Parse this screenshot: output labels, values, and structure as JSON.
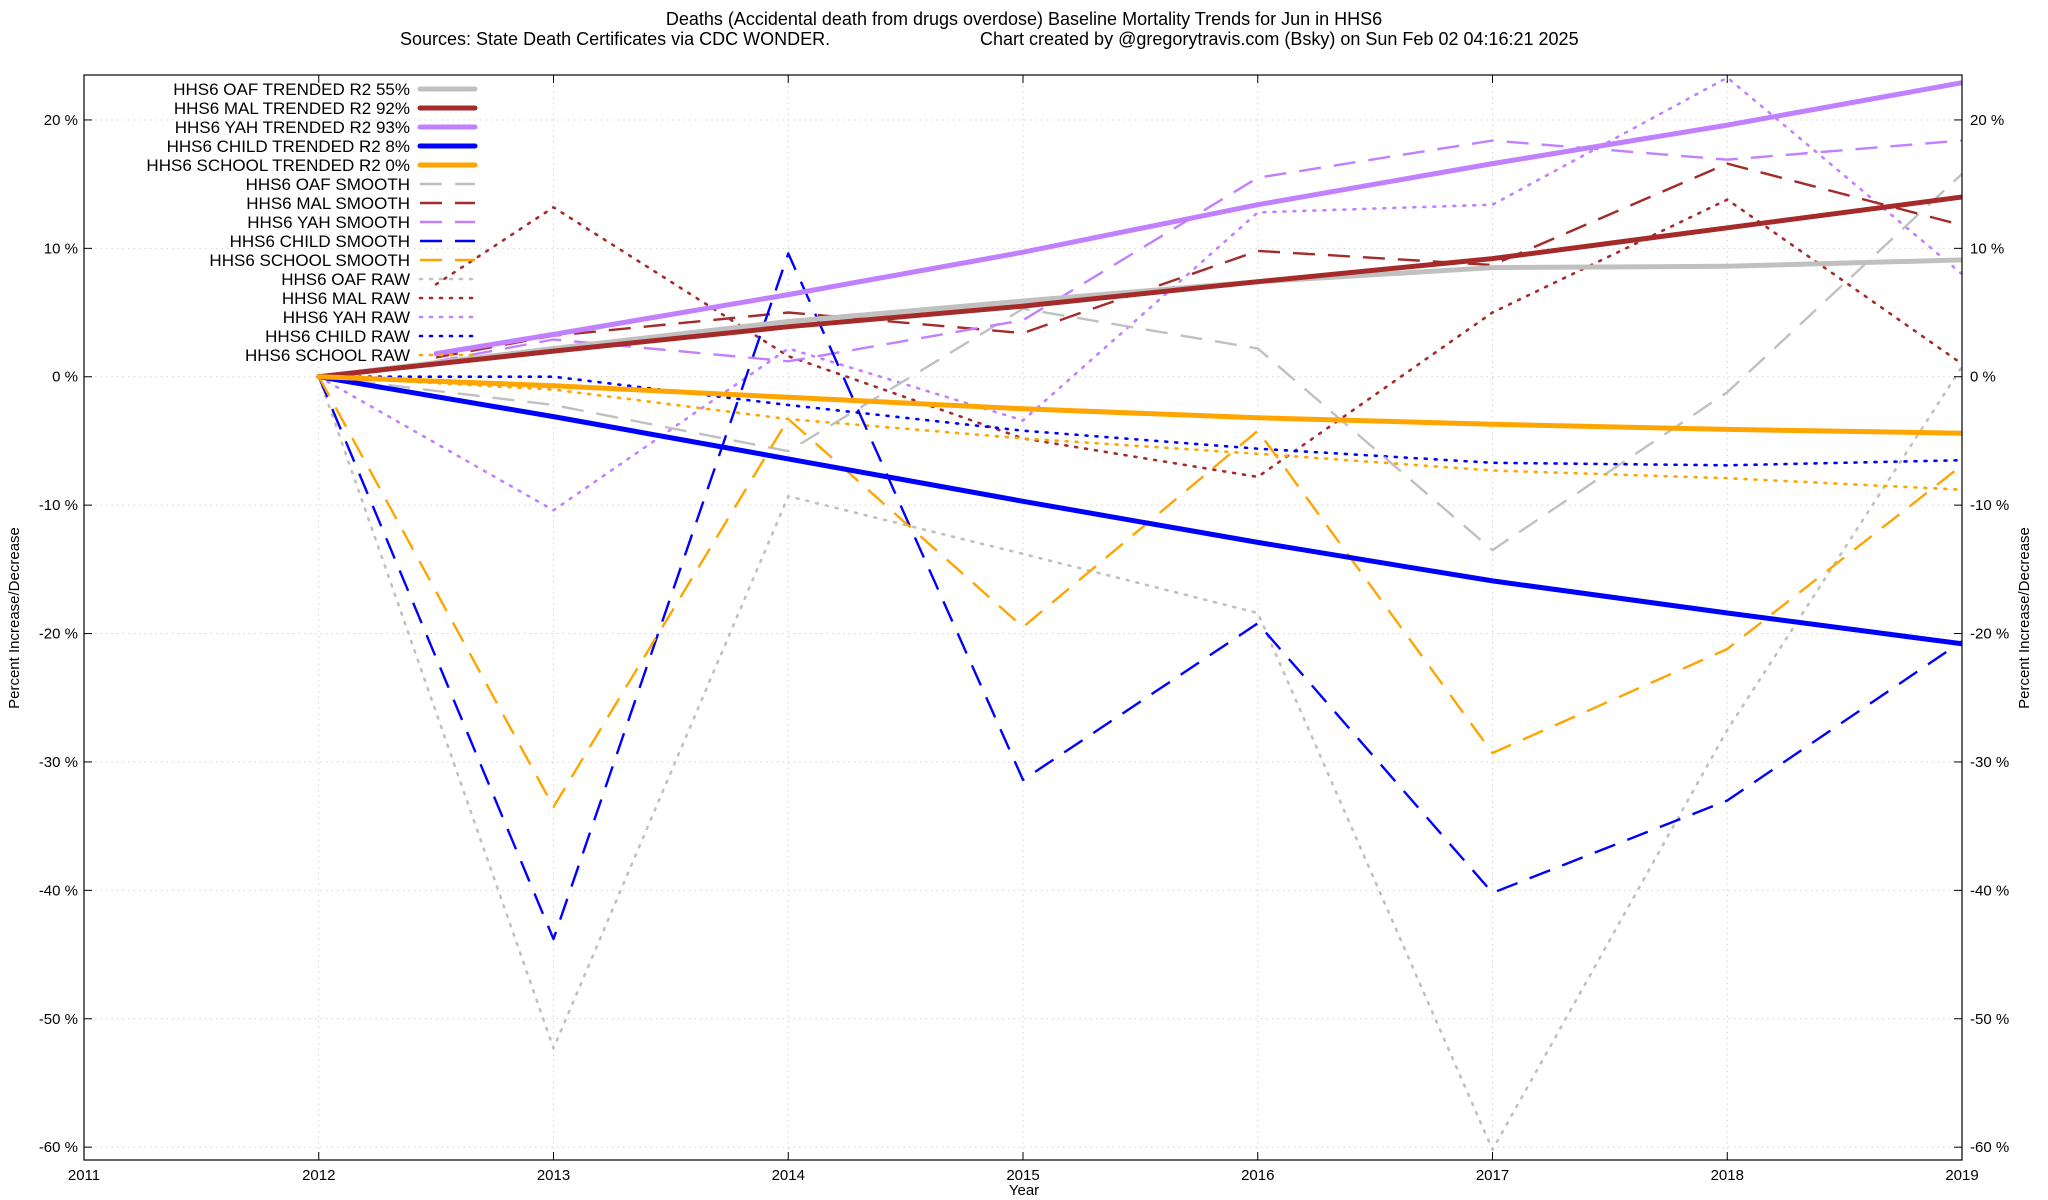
{
  "chart_data": {
    "type": "line",
    "title": "Deaths (Accidental death from drugs overdose)  Baseline Mortality Trends for Jun in HHS6",
    "subtitle_left": "Sources: State Death Certificates via CDC WONDER.",
    "subtitle_right": "Chart created by @gregorytravis.com (Bsky) on Sun Feb 02 04:16:21 2025",
    "xlabel": "Year",
    "ylabel_left": "Percent Increase/Decrease",
    "ylabel_right": "Percent Increase/Decrease",
    "xlim": [
      2011,
      2019
    ],
    "ylim": [
      -61,
      23.5
    ],
    "x_ticks": [
      2011,
      2012,
      2013,
      2014,
      2015,
      2016,
      2017,
      2018,
      2019
    ],
    "x_tick_labels": [
      "2011",
      "2012",
      "2013",
      "2014",
      "2015",
      "2016",
      "2017",
      "2018",
      "2019"
    ],
    "y_ticks": [
      20,
      10,
      0,
      -10,
      -20,
      -30,
      -40,
      -50,
      -60
    ],
    "y_tick_labels": [
      "20 %",
      "10 %",
      "0 %",
      "-10 %",
      "-20 %",
      "-30 %",
      "-40 %",
      "-50 %",
      "-60 %"
    ],
    "grid": true,
    "legend_position": "top-left",
    "series": [
      {
        "name": "HHS6 OAF TRENDED R2  55%",
        "style": "trend",
        "color": "#c0c0c0",
        "points": [
          [
            2012,
            0
          ],
          [
            2013,
            2.2
          ],
          [
            2014,
            4.3
          ],
          [
            2015,
            5.9
          ],
          [
            2016,
            7.4
          ],
          [
            2017,
            8.5
          ],
          [
            2018,
            8.6
          ],
          [
            2019,
            9.1
          ]
        ]
      },
      {
        "name": "HHS6 MAL TRENDED R2  92%",
        "style": "trend",
        "color": "#a52a2a",
        "points": [
          [
            2012,
            0
          ],
          [
            2013,
            2
          ],
          [
            2014,
            3.9
          ],
          [
            2015,
            5.5
          ],
          [
            2016,
            7.4
          ],
          [
            2017,
            9.2
          ],
          [
            2018,
            11.6
          ],
          [
            2019,
            14
          ]
        ]
      },
      {
        "name": "HHS6 YAH TRENDED R2  93%",
        "style": "trend",
        "color": "#c080ff",
        "points": [
          [
            2012.5,
            1.8
          ],
          [
            2013,
            3.3
          ],
          [
            2014,
            6.4
          ],
          [
            2015,
            9.7
          ],
          [
            2016,
            13.4
          ],
          [
            2017,
            16.6
          ],
          [
            2018,
            19.6
          ],
          [
            2019,
            22.9
          ]
        ]
      },
      {
        "name": "HHS6 CHILD TRENDED R2   8%",
        "style": "trend",
        "color": "#0000ff",
        "points": [
          [
            2012,
            0
          ],
          [
            2013,
            -3.1
          ],
          [
            2014,
            -6.4
          ],
          [
            2015,
            -9.7
          ],
          [
            2016,
            -12.9
          ],
          [
            2017,
            -15.9
          ],
          [
            2018,
            -18.4
          ],
          [
            2019,
            -20.8
          ]
        ]
      },
      {
        "name": "HHS6 SCHOOL TRENDED R2   0%",
        "style": "trend",
        "color": "#ffa500",
        "points": [
          [
            2012,
            0
          ],
          [
            2013,
            -0.7
          ],
          [
            2014,
            -1.6
          ],
          [
            2015,
            -2.5
          ],
          [
            2016,
            -3.2
          ],
          [
            2017,
            -3.7
          ],
          [
            2018,
            -4.1
          ],
          [
            2019,
            -4.4
          ]
        ]
      },
      {
        "name": "HHS6 OAF SMOOTH",
        "style": "smooth",
        "color": "#c0c0c0",
        "points": [
          [
            2012,
            0
          ],
          [
            2013,
            -2.2
          ],
          [
            2014,
            -5.8
          ],
          [
            2015,
            5.3
          ],
          [
            2016,
            2.2
          ],
          [
            2017,
            -13.5
          ],
          [
            2018,
            -1.2
          ],
          [
            2019,
            15.8
          ]
        ]
      },
      {
        "name": "HHS6 MAL SMOOTH",
        "style": "smooth",
        "color": "#a52a2a",
        "points": [
          [
            2012.5,
            1.5
          ],
          [
            2013,
            3.2
          ],
          [
            2014,
            5
          ],
          [
            2015,
            3.4
          ],
          [
            2016,
            9.8
          ],
          [
            2017,
            8.7
          ],
          [
            2018,
            16.6
          ],
          [
            2019,
            11.8
          ]
        ]
      },
      {
        "name": "HHS6 YAH SMOOTH",
        "style": "smooth",
        "color": "#c080ff",
        "points": [
          [
            2012.5,
            1.2
          ],
          [
            2013,
            2.9
          ],
          [
            2014,
            1.2
          ],
          [
            2015,
            4.4
          ],
          [
            2016,
            15.5
          ],
          [
            2017,
            18.4
          ],
          [
            2018,
            16.9
          ],
          [
            2019,
            18.4
          ]
        ]
      },
      {
        "name": "HHS6 CHILD SMOOTH",
        "style": "smooth",
        "color": "#0000ff",
        "points": [
          [
            2012,
            0
          ],
          [
            2013,
            -43.8
          ],
          [
            2014,
            9.6
          ],
          [
            2015,
            -31.4
          ],
          [
            2016,
            -19.2
          ],
          [
            2017,
            -40.2
          ],
          [
            2018,
            -33
          ],
          [
            2019,
            -20.6
          ]
        ]
      },
      {
        "name": "HHS6 SCHOOL SMOOTH",
        "style": "smooth",
        "color": "#ffa500",
        "points": [
          [
            2012,
            0
          ],
          [
            2013,
            -33.5
          ],
          [
            2014,
            -3.3
          ],
          [
            2015,
            -19.5
          ],
          [
            2016,
            -4.2
          ],
          [
            2017,
            -29.3
          ],
          [
            2018,
            -21.2
          ],
          [
            2019,
            -6.9
          ]
        ]
      },
      {
        "name": "HHS6 OAF RAW",
        "style": "raw",
        "color": "#c0c0c0",
        "points": [
          [
            2012,
            0
          ],
          [
            2013,
            -52.3
          ],
          [
            2014,
            -9.3
          ],
          [
            2015,
            -13.8
          ],
          [
            2016,
            -18.4
          ],
          [
            2017,
            -60.2
          ],
          [
            2018,
            -27.5
          ],
          [
            2019,
            0.8
          ]
        ]
      },
      {
        "name": "HHS6 MAL RAW",
        "style": "raw",
        "color": "#a52a2a",
        "points": [
          [
            2012.5,
            7.2
          ],
          [
            2013,
            13.2
          ],
          [
            2014,
            1.6
          ],
          [
            2015,
            -4.8
          ],
          [
            2016,
            -7.8
          ],
          [
            2017,
            5
          ],
          [
            2018,
            13.8
          ],
          [
            2019,
            1
          ]
        ]
      },
      {
        "name": "HHS6 YAH RAW",
        "style": "raw",
        "color": "#c080ff",
        "points": [
          [
            2012,
            0
          ],
          [
            2013,
            -10.4
          ],
          [
            2014,
            2.2
          ],
          [
            2015,
            -3.4
          ],
          [
            2016,
            12.8
          ],
          [
            2017,
            13.4
          ],
          [
            2018,
            23.3
          ],
          [
            2019,
            8
          ]
        ]
      },
      {
        "name": "HHS6 CHILD RAW",
        "style": "raw",
        "color": "#0000ff",
        "points": [
          [
            2012,
            0
          ],
          [
            2013,
            0
          ],
          [
            2014,
            -2.2
          ],
          [
            2015,
            -4.2
          ],
          [
            2016,
            -5.6
          ],
          [
            2017,
            -6.7
          ],
          [
            2018,
            -6.9
          ],
          [
            2019,
            -6.5
          ]
        ]
      },
      {
        "name": "HHS6 SCHOOL RAW",
        "style": "raw",
        "color": "#ffa500",
        "points": [
          [
            2012,
            0
          ],
          [
            2013,
            -1
          ],
          [
            2014,
            -3.3
          ],
          [
            2015,
            -4.8
          ],
          [
            2016,
            -6
          ],
          [
            2017,
            -7.3
          ],
          [
            2018,
            -7.9
          ],
          [
            2019,
            -8.8
          ]
        ]
      }
    ]
  }
}
